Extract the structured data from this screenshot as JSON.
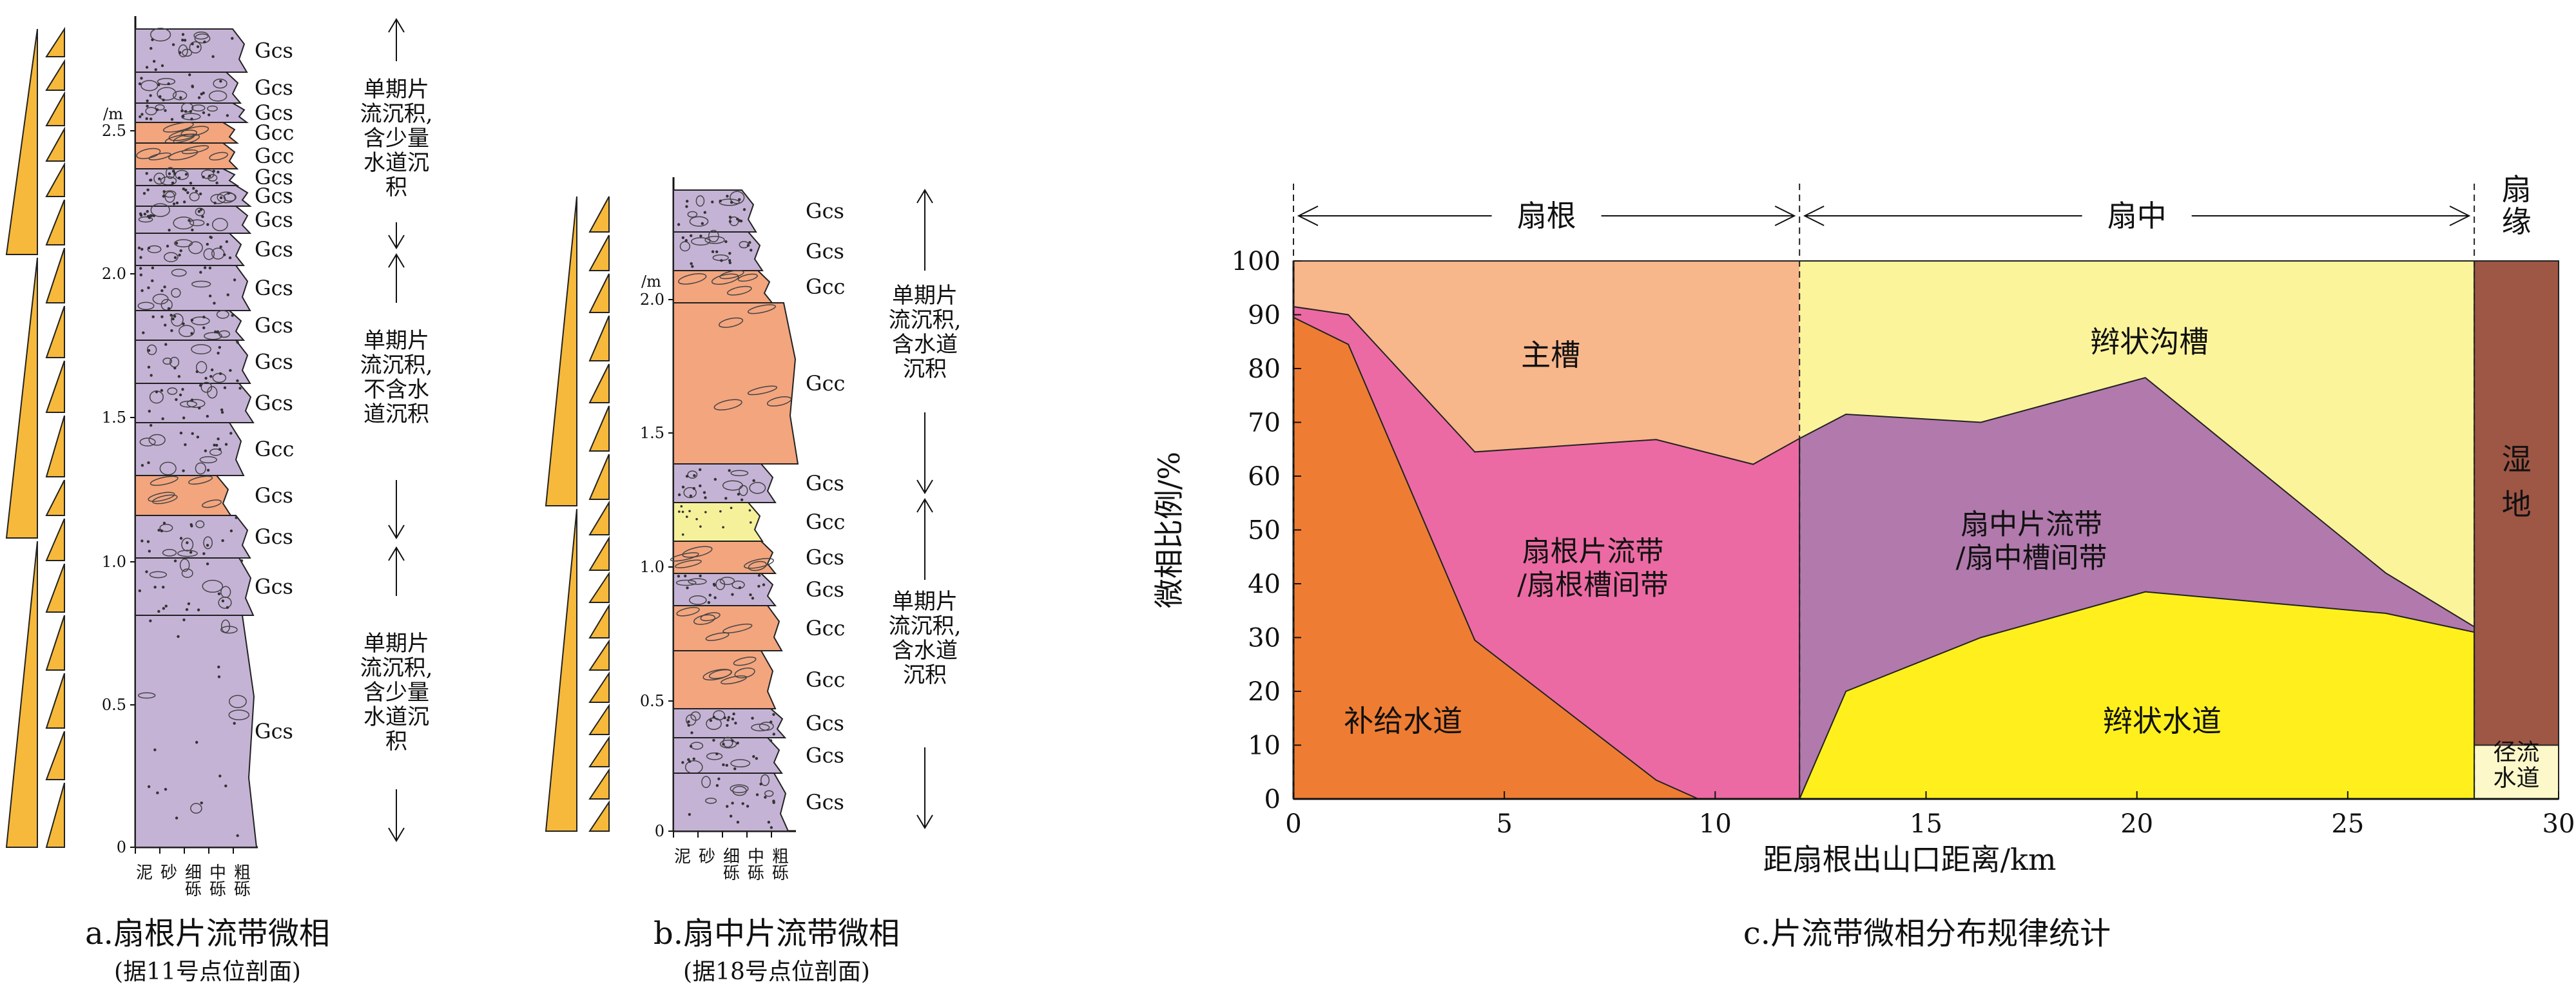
{
  "panel_a": {
    "caption": "a.扇根片流带微相",
    "subcaption": "(据11号点位剖面)",
    "unit": "/m",
    "y_ticks": [
      "2.5",
      "2.0",
      "1.5",
      "1.0",
      "0.5",
      "0"
    ],
    "grain_labels": [
      "泥",
      "砂",
      "细砾",
      "中砾",
      "粗砾"
    ],
    "lith_labels": [
      "Gcs",
      "Gcs",
      "Gcs",
      "Gcc",
      "Gcc",
      "Gcs",
      "Gcs",
      "Gcs",
      "Gcs",
      "Gcs",
      "Gcs",
      "Gcs",
      "Gcs",
      "Gcc",
      "Gcs",
      "Gcs",
      "Gcs",
      "Gcs"
    ],
    "interpretations": [
      "单期片\n流沉积,\n含少量\n水道沉\n积",
      "单期片\n流沉积,\n不含水\n道沉积",
      "单期片\n流沉积,\n含少量\n水道沉\n积"
    ],
    "colors": {
      "gcs": "#c5b3d6",
      "gcc": "#f3a57e",
      "triangle": "#f6b93b"
    }
  },
  "panel_b": {
    "caption": "b.扇中片流带微相",
    "subcaption": "(据18号点位剖面)",
    "unit": "/m",
    "y_ticks": [
      "2.0",
      "1.5",
      "1.0",
      "0.5",
      "0"
    ],
    "grain_labels": [
      "泥",
      "砂",
      "细砾",
      "中砾",
      "粗砾"
    ],
    "lith_labels": [
      "Gcs",
      "Gcs",
      "Gcc",
      "Gcc",
      "Gcs",
      "Gcc",
      "Gcs",
      "Gcs",
      "Gcc",
      "Gcc",
      "Gcs",
      "Gcs",
      "Gcs"
    ],
    "interpretations": [
      "单期片\n流沉积,\n含水道\n沉积",
      "单期片\n流沉积,\n含水道\n沉积"
    ],
    "colors": {
      "gcs": "#c5b3d6",
      "gcc": "#f3a57e",
      "sand": "#f4f19a",
      "triangle": "#f6b93b"
    }
  },
  "panel_c": {
    "caption": "c.片流带微相分布规律统计",
    "zones": [
      "扇根",
      "扇中",
      "扇\n缘"
    ],
    "area_labels": {
      "main_channel": "主槽",
      "braided_trough": "辫状沟槽",
      "fan_root_sheet": "扇根片流带\n/扇根槽间带",
      "mid_fan_sheet": "扇中片流带\n/扇中槽间带",
      "feeder_channel": "补给水道",
      "braided_channel": "辫状水道",
      "wetland": "湿\n地",
      "runoff_channel": "径流\n水道"
    }
  },
  "chart_data": {
    "type": "area",
    "xlabel": "距扇根出山口距离/km",
    "ylabel": "微相比例/%",
    "xlim": [
      0,
      30
    ],
    "ylim": [
      0,
      100
    ],
    "x_ticks": [
      0,
      5,
      10,
      15,
      20,
      25,
      30
    ],
    "y_ticks": [
      0,
      10,
      20,
      30,
      40,
      50,
      60,
      70,
      80,
      90,
      100
    ],
    "zone_boundaries_km": [
      0,
      12,
      28
    ],
    "boundaries": {
      "feeder_channel_top": [
        [
          0,
          89.5
        ],
        [
          1.3,
          84.5
        ],
        [
          4.3,
          29.5
        ],
        [
          8.6,
          3.5
        ],
        [
          9.6,
          0
        ]
      ],
      "fan_root_sheet_top": [
        [
          0,
          91.5
        ],
        [
          1.3,
          90
        ],
        [
          4.3,
          64.5
        ],
        [
          8.6,
          66.8
        ],
        [
          10.9,
          62.2
        ],
        [
          12,
          67
        ]
      ],
      "braided_channel_top": [
        [
          12,
          0
        ],
        [
          13.1,
          20
        ],
        [
          16.3,
          30
        ],
        [
          20.2,
          38.5
        ],
        [
          25.9,
          34.5
        ],
        [
          28,
          31
        ]
      ],
      "mid_fan_sheet_top": [
        [
          12,
          67
        ],
        [
          13.1,
          71.5
        ],
        [
          16.3,
          70
        ],
        [
          20.2,
          78.3
        ],
        [
          25.9,
          42
        ],
        [
          28,
          32
        ]
      ],
      "runoff_channel_top": [
        [
          28,
          10
        ],
        [
          30,
          10
        ]
      ]
    }
  }
}
